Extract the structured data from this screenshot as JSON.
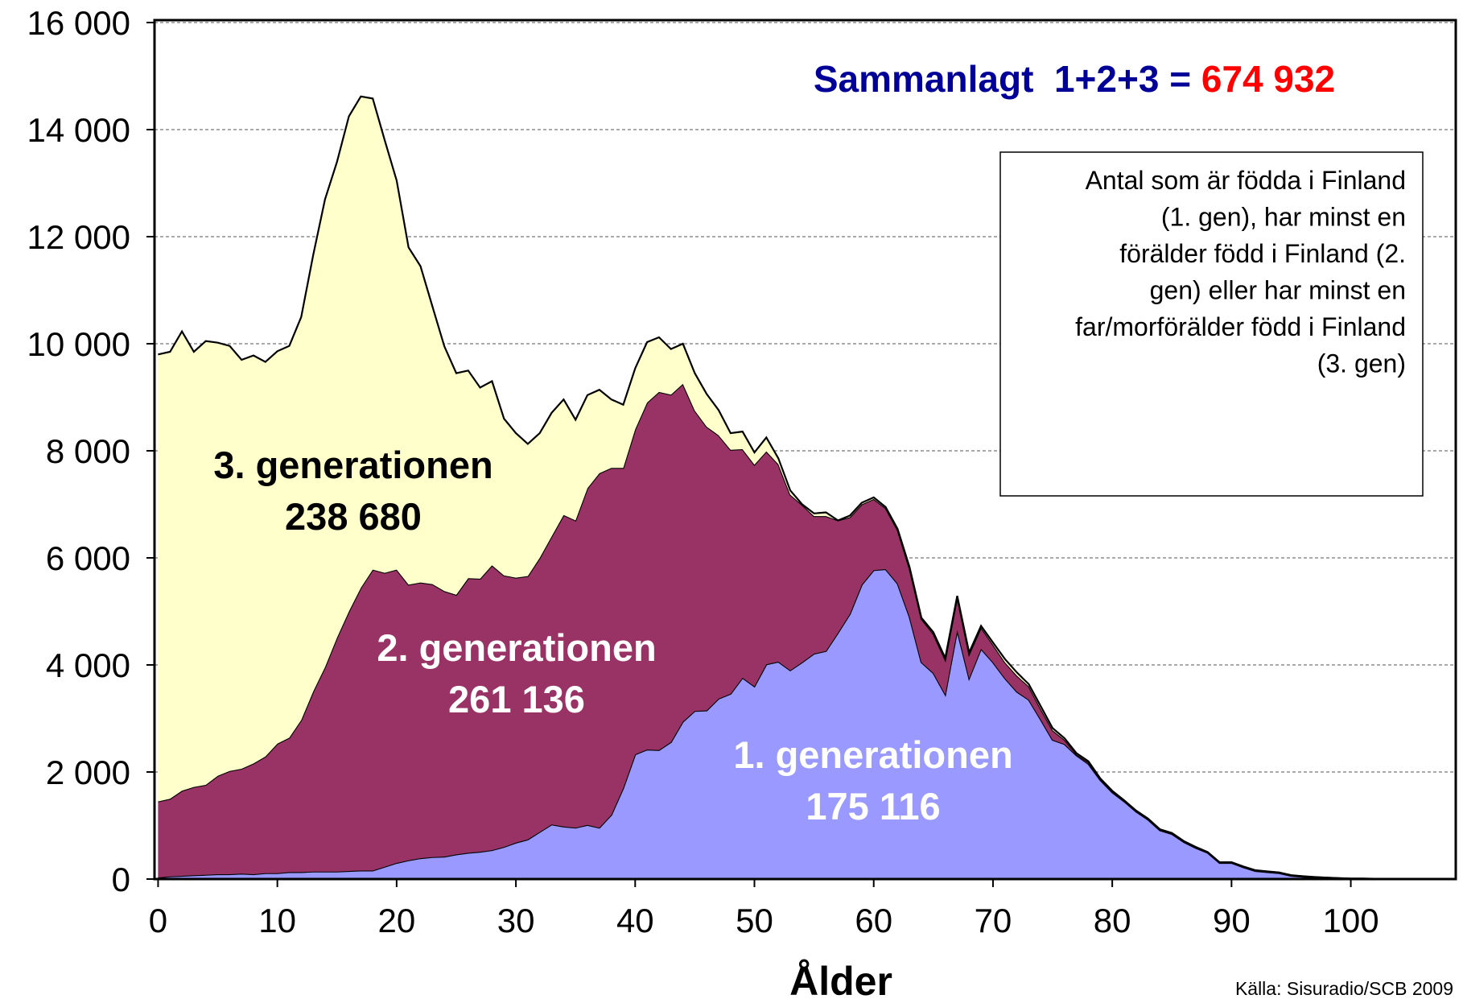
{
  "chart_data": {
    "type": "stacked_area",
    "title": "Sammanlagt  1+2+3 = ",
    "title_total": "674 932",
    "note": [
      "Antal som är födda i Finland",
      "(1. gen), har minst en",
      "förälder född i Finland (2.",
      "gen) eller har minst en",
      "far/morförälder född i Finland",
      "(3. gen)"
    ],
    "x_label": "Ålder",
    "source": "Källa: Sisuradio/SCB 2009",
    "xlim": [
      -0.3,
      108.8
    ],
    "xticks": [
      0,
      10,
      20,
      30,
      40,
      50,
      60,
      70,
      80,
      90,
      100
    ],
    "ylim": [
      0,
      16000
    ],
    "yticks": [
      0,
      {
        "value": 2000,
        "label": "2 000"
      },
      {
        "value": 4000,
        "label": "4 000"
      },
      {
        "value": 6000,
        "label": "6 000"
      },
      {
        "value": 8000,
        "label": "8 000"
      },
      {
        "value": 10000,
        "label": "10 000"
      },
      {
        "value": 12000,
        "label": "12 000"
      },
      {
        "value": 14000,
        "label": "14 000"
      },
      {
        "value": 16000,
        "label": "16 000"
      }
    ],
    "grid": true,
    "x": [
      0,
      1,
      2,
      3,
      4,
      5,
      6,
      7,
      8,
      9,
      10,
      11,
      12,
      13,
      14,
      15,
      16,
      17,
      18,
      19,
      20,
      21,
      22,
      23,
      24,
      25,
      26,
      27,
      28,
      29,
      30,
      31,
      32,
      33,
      34,
      35,
      36,
      37,
      38,
      39,
      40,
      41,
      42,
      43,
      44,
      45,
      46,
      47,
      48,
      49,
      50,
      51,
      52,
      53,
      54,
      55,
      56,
      57,
      58,
      59,
      60,
      61,
      62,
      63,
      64,
      65,
      66,
      67,
      68,
      69,
      70,
      71,
      72,
      73,
      74,
      75,
      76,
      77,
      78,
      79,
      80,
      81,
      82,
      83,
      84,
      85,
      86,
      87,
      88,
      89,
      90,
      91,
      92,
      93,
      94,
      95,
      96,
      97,
      98,
      99,
      100,
      101,
      102,
      103,
      104,
      105,
      106,
      107,
      108
    ],
    "series": [
      {
        "name": "1. generationen",
        "total": "175 116",
        "color": "#9999ff",
        "text_color": "#ffffff",
        "values": [
          30,
          50,
          60,
          70,
          80,
          90,
          90,
          100,
          90,
          110,
          110,
          130,
          130,
          140,
          140,
          140,
          150,
          160,
          160,
          230,
          300,
          350,
          390,
          410,
          420,
          460,
          490,
          510,
          540,
          600,
          680,
          740,
          880,
          1020,
          980,
          960,
          1010,
          960,
          1200,
          1700,
          2330,
          2420,
          2410,
          2560,
          2940,
          3140,
          3150,
          3370,
          3460,
          3760,
          3600,
          4010,
          4060,
          3900,
          4050,
          4210,
          4260,
          4600,
          4950,
          5500,
          5770,
          5790,
          5520,
          4900,
          4050,
          3850,
          3450,
          4650,
          3750,
          4300,
          4050,
          3750,
          3500,
          3350,
          2980,
          2600,
          2520,
          2310,
          2150,
          1850,
          1620,
          1450,
          1260,
          1110,
          910,
          840,
          690,
          580,
          490,
          300,
          300,
          220,
          150,
          130,
          110,
          60,
          40,
          30,
          20,
          10,
          5,
          4,
          3,
          2,
          2,
          1,
          1,
          0,
          0
        ]
      },
      {
        "name": "2. generationen",
        "total": "261 136",
        "color": "#993366",
        "text_color": "#ffffff",
        "values": [
          1420,
          1450,
          1590,
          1650,
          1680,
          1840,
          1930,
          1960,
          2070,
          2180,
          2420,
          2510,
          2840,
          3360,
          3820,
          4370,
          4850,
          5280,
          5620,
          5490,
          5480,
          5150,
          5150,
          5100,
          4960,
          4850,
          5130,
          5100,
          5320,
          5070,
          4950,
          4920,
          5120,
          5380,
          5820,
          5740,
          6290,
          6620,
          6480,
          5980,
          6070,
          6480,
          6690,
          6490,
          6310,
          5610,
          5300,
          4920,
          4560,
          4270,
          4140,
          3980,
          3690,
          3280,
          2940,
          2570,
          2520,
          2100,
          1810,
          1500,
          1330,
          1140,
          1000,
          900,
          810,
          730,
          650,
          610,
          450,
          400,
          330,
          300,
          300,
          250,
          200,
          180,
          80,
          20,
          30,
          20,
          20,
          10,
          10,
          10,
          10,
          10,
          10,
          10,
          10,
          10,
          10,
          10,
          10,
          10,
          10,
          10,
          10,
          5,
          5,
          5,
          3,
          3,
          2,
          2,
          1,
          1,
          1,
          0,
          0
        ]
      },
      {
        "name": "3. generationen",
        "total": "238 680",
        "color": "#ffffcc",
        "text_color": "#000000",
        "values": [
          8350,
          8350,
          8580,
          8130,
          8290,
          8090,
          7940,
          7640,
          7620,
          7370,
          7330,
          7320,
          7530,
          8150,
          8740,
          8890,
          9250,
          9180,
          8800,
          8080,
          7270,
          6300,
          5910,
          5190,
          4570,
          4140,
          3880,
          3570,
          3440,
          2930,
          2700,
          2470,
          2330,
          2310,
          2160,
          1880,
          1740,
          1560,
          1280,
          1180,
          1140,
          1130,
          1020,
          850,
          750,
          700,
          610,
          470,
          310,
          330,
          230,
          260,
          110,
          80,
          10,
          50,
          70,
          0,
          30,
          30,
          30,
          20,
          20,
          30,
          20,
          30,
          30,
          30,
          30,
          30,
          40,
          60,
          60,
          40,
          50,
          40,
          30,
          20,
          20,
          10,
          10,
          10,
          10,
          10,
          10,
          10,
          10,
          10,
          5,
          5,
          5,
          5,
          5,
          3,
          3,
          2,
          2,
          2,
          2,
          2,
          2,
          2,
          1,
          1,
          1,
          1,
          0,
          0,
          0
        ]
      }
    ]
  }
}
